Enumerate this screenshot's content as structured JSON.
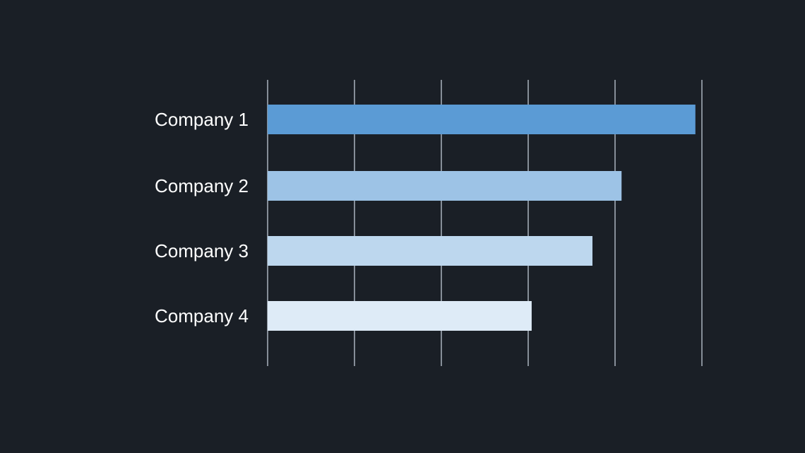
{
  "background_color": "#1a1f26",
  "chart_data": {
    "type": "bar",
    "orientation": "horizontal",
    "categories": [
      "Company 1",
      "Company 2",
      "Company 3",
      "Company 4"
    ],
    "values": [
      98.5,
      81.5,
      74.8,
      60.8
    ],
    "bar_colors": [
      "#5b9bd5",
      "#9dc3e6",
      "#bdd7ee",
      "#deebf7"
    ],
    "xlim": [
      0,
      100
    ],
    "x_gridlines": [
      0,
      20,
      40,
      60,
      80,
      100
    ],
    "grid": true,
    "gridline_color": "#a9b3bd",
    "label_color": "#ffffff",
    "title": "",
    "xlabel": "",
    "ylabel": "",
    "legend": "none"
  }
}
